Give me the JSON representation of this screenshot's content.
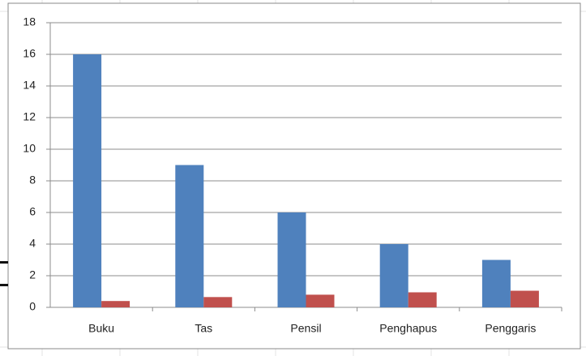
{
  "chart_data": {
    "type": "bar",
    "categories": [
      "Buku",
      "Tas",
      "Pensil",
      "Penghapus",
      "Penggaris"
    ],
    "series": [
      {
        "color": "#4f81bd",
        "values": [
          16,
          9,
          6,
          4,
          3
        ]
      },
      {
        "color": "#c0504d",
        "values": [
          0.4,
          0.65,
          0.8,
          0.95,
          1.05
        ]
      }
    ],
    "ylim": [
      0,
      18
    ],
    "yticks": [
      0,
      2,
      4,
      6,
      8,
      10,
      12,
      14,
      16,
      18
    ],
    "grid": true
  }
}
